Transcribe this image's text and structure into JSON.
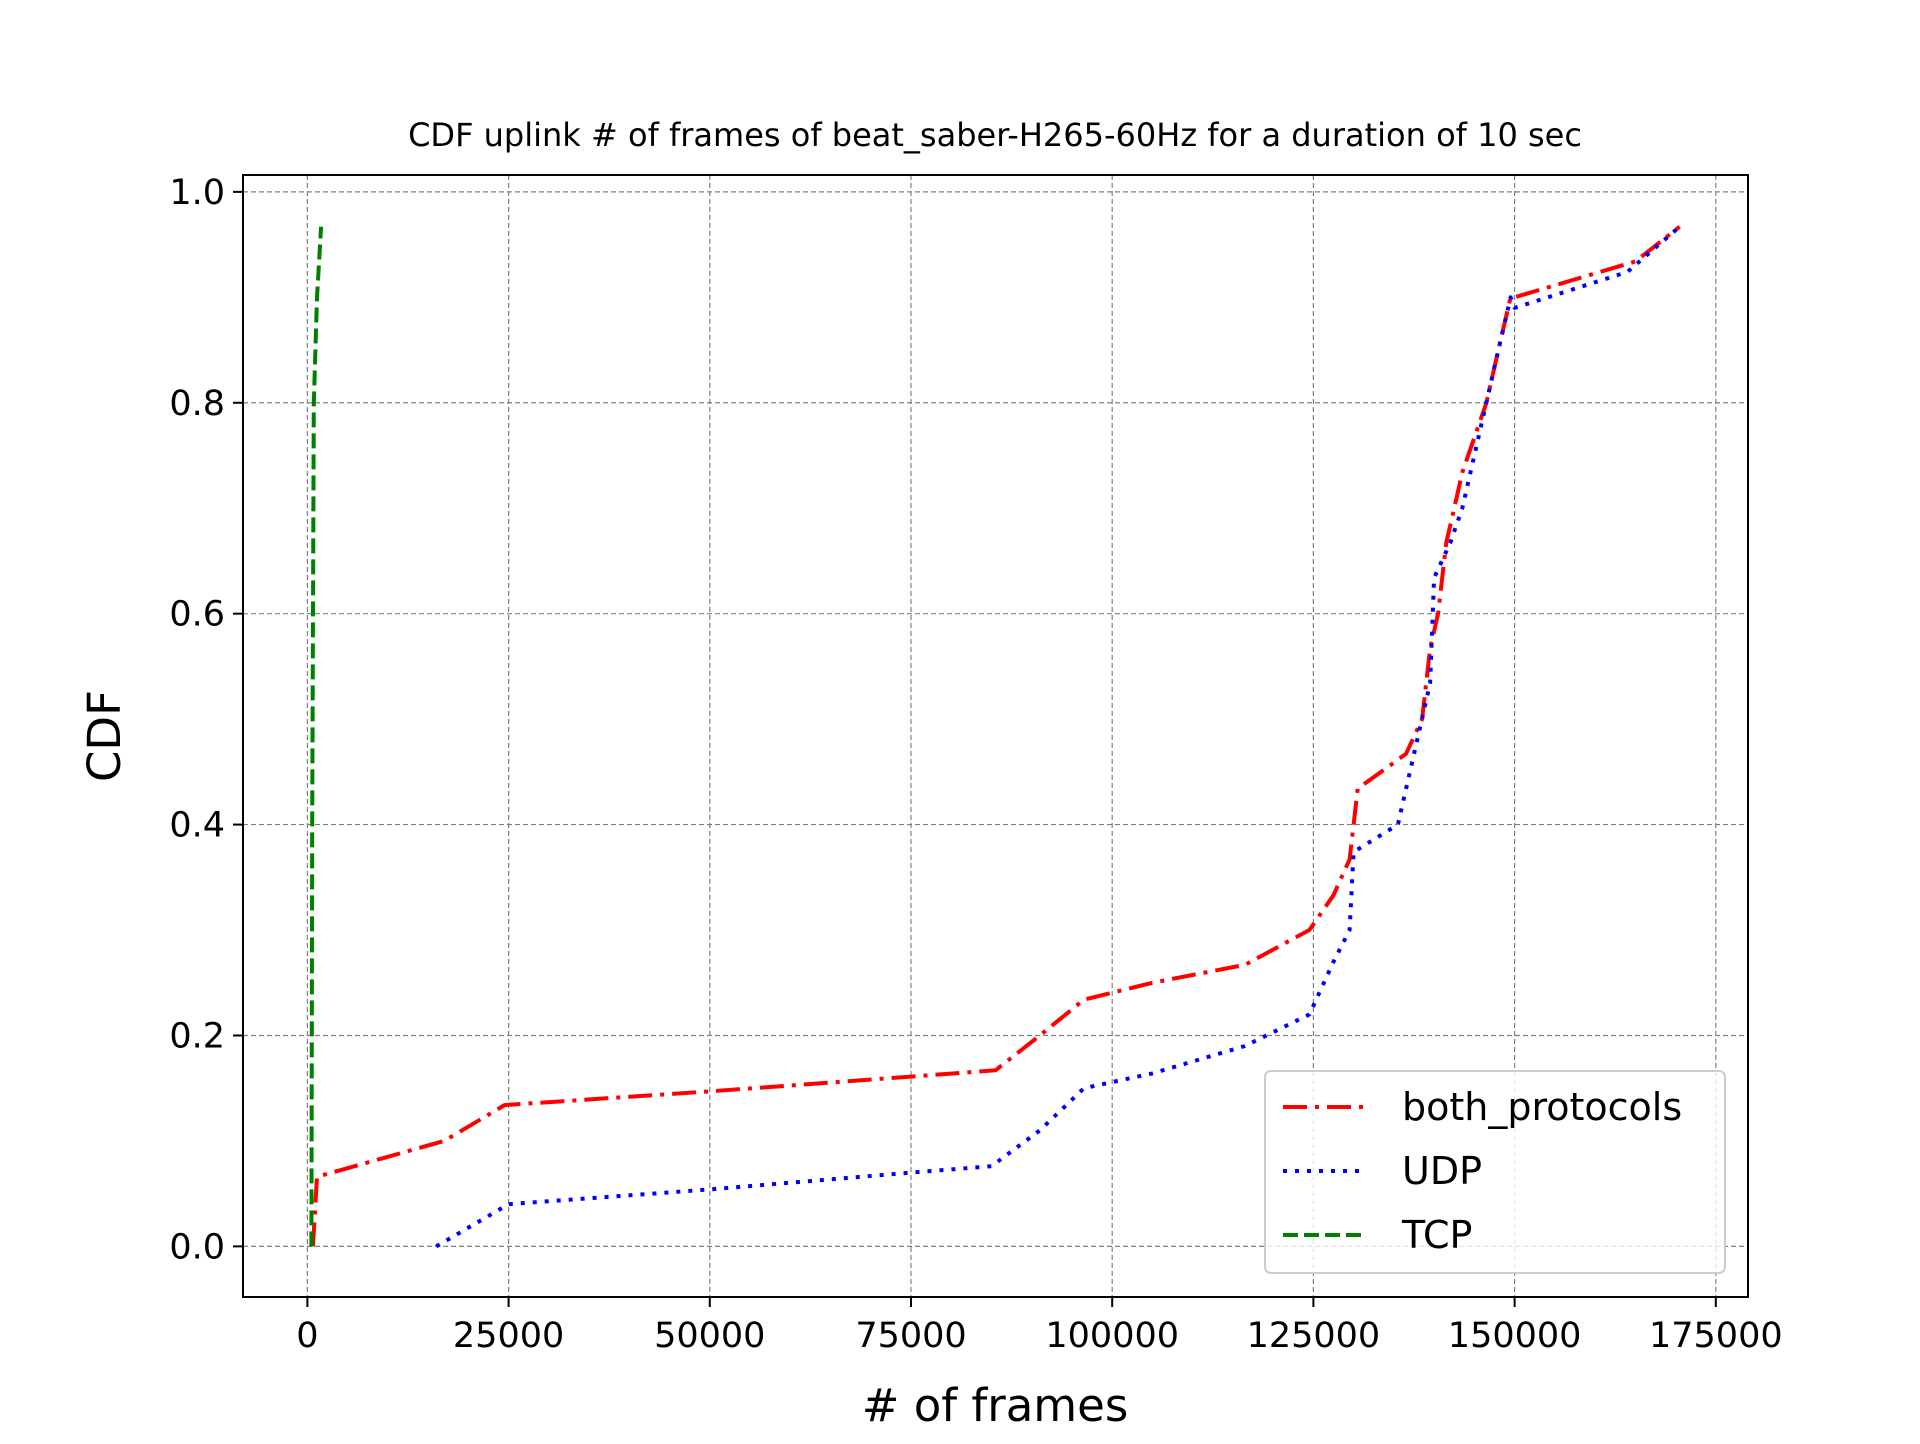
{
  "chart_data": {
    "type": "line",
    "title": "CDF uplink # of frames of beat_saber-H265-60Hz for a duration of 10 sec",
    "xlabel": "# of frames",
    "ylabel": "CDF",
    "xlim": [
      -8000,
      179000
    ],
    "ylim": [
      -0.048,
      1.016
    ],
    "xticks": [
      0,
      25000,
      50000,
      75000,
      100000,
      125000,
      150000,
      175000
    ],
    "xtick_labels": [
      "0",
      "25000",
      "50000",
      "75000",
      "100000",
      "125000",
      "150000",
      "175000"
    ],
    "yticks": [
      0.0,
      0.2,
      0.4,
      0.6,
      0.8,
      1.0
    ],
    "ytick_labels": [
      "0.0",
      "0.2",
      "0.4",
      "0.6",
      "0.8",
      "1.0"
    ],
    "grid": true,
    "legend_position": "lower-right",
    "series": [
      {
        "name": "both_protocols",
        "color": "#ff0000",
        "style": "dashdot",
        "x": [
          700,
          1200,
          17000,
          24500,
          50000,
          75000,
          85500,
          91000,
          96500,
          105000,
          116500,
          124500,
          127500,
          129500,
          130000,
          130500,
          136500,
          138500,
          139500,
          140500,
          141500,
          142500,
          143500,
          146500,
          147500,
          148500,
          149500,
          150000,
          165000,
          170500
        ],
        "y": [
          0.0,
          0.066,
          0.1,
          0.134,
          0.147,
          0.161,
          0.167,
          0.2,
          0.234,
          0.25,
          0.267,
          0.3,
          0.333,
          0.367,
          0.4,
          0.434,
          0.467,
          0.5,
          0.567,
          0.6,
          0.667,
          0.7,
          0.734,
          0.8,
          0.834,
          0.867,
          0.9,
          0.9,
          0.934,
          0.967
        ]
      },
      {
        "name": "UDP",
        "color": "#0000ff",
        "style": "dotted",
        "x": [
          16000,
          25000,
          50000,
          75000,
          85000,
          91000,
          96500,
          105000,
          116500,
          124500,
          127500,
          129500,
          130000,
          135500,
          137500,
          139500,
          140000,
          142000,
          143500,
          147500,
          149500,
          150000,
          164000,
          170500
        ],
        "y": [
          0.0,
          0.04,
          0.054,
          0.07,
          0.076,
          0.11,
          0.15,
          0.164,
          0.19,
          0.22,
          0.27,
          0.3,
          0.374,
          0.4,
          0.467,
          0.534,
          0.634,
          0.667,
          0.7,
          0.834,
          0.9,
          0.89,
          0.924,
          0.967
        ]
      },
      {
        "name": "TCP",
        "color": "#008000",
        "style": "dashed",
        "x": [
          500,
          600,
          800,
          1200,
          1700
        ],
        "y": [
          0.0,
          0.4,
          0.8,
          0.9,
          0.967
        ]
      }
    ]
  }
}
